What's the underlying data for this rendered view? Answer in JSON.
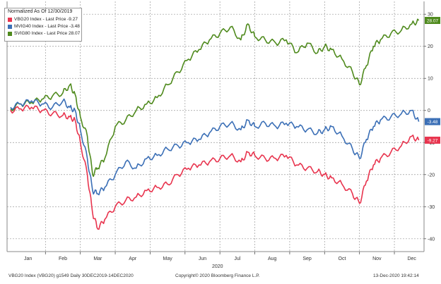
{
  "legend": {
    "title": "Normalized As Of 12/30/2019",
    "items": [
      {
        "label": "VBG20 Index - Last Price  -9.27",
        "color": "#e8344e"
      },
      {
        "label": "MVIG40 Index - Last Price  -3.48",
        "color": "#3b6fb6"
      },
      {
        "label": "SVIG80 Index - Last Price  28.07",
        "color": "#4f8a1d"
      }
    ]
  },
  "footer": {
    "left": "VBG20 Index (VBG20) g1549  Daily 30DEC2019-14DEC2020",
    "center": "Copyright© 2020 Bloomberg Finance L.P.",
    "right": "13-Dec-2020 19:42:14"
  },
  "chart_data": {
    "type": "line",
    "title": "",
    "xlabel": "2020",
    "ylabel": "",
    "ylim": [
      -44,
      34
    ],
    "yticks": [
      30,
      20,
      10,
      0,
      -10,
      -20,
      -30,
      -40
    ],
    "ytick_labels": [
      "30",
      "20",
      "10",
      "0",
      "-10",
      "-20",
      "-30",
      "-40"
    ],
    "month_labels": [
      "Jan",
      "Feb",
      "Mar",
      "Apr",
      "May",
      "Jun",
      "Jul",
      "Aug",
      "Sep",
      "Oct",
      "Nov",
      "Dec"
    ],
    "month_positions": [
      0.5,
      1.5,
      2.5,
      3.5,
      4.5,
      5.5,
      6.5,
      7.5,
      8.5,
      9.5,
      10.5,
      11.5
    ],
    "x_range": [
      -0.1,
      11.85
    ],
    "grid": true,
    "series": [
      {
        "name": "SVIG80 Index",
        "color": "#4f8a1d",
        "last_value": 28.07,
        "last_label": "28.07",
        "x": [
          0,
          0.3,
          0.6,
          0.9,
          1.2,
          1.5,
          1.7,
          1.85,
          2.0,
          2.2,
          2.35,
          2.5,
          2.7,
          3.0,
          3.3,
          3.6,
          3.9,
          4.2,
          4.5,
          4.8,
          5.1,
          5.4,
          5.7,
          6.0,
          6.3,
          6.6,
          6.8,
          7.0,
          7.3,
          7.6,
          7.9,
          8.2,
          8.5,
          8.8,
          9.0,
          9.2,
          9.5,
          9.8,
          10.0,
          10.2,
          10.4,
          10.6,
          10.9,
          11.2,
          11.5,
          11.7
        ],
        "values": [
          0.5,
          2,
          2.5,
          3.5,
          4.5,
          5.5,
          8,
          5,
          -2,
          -8,
          -20,
          -18,
          -15,
          -5,
          -3,
          0,
          2,
          4,
          8,
          12,
          16,
          19,
          22,
          24,
          26,
          22,
          27,
          23,
          22,
          21,
          22,
          18,
          21,
          18,
          20,
          19,
          16,
          12,
          8,
          14,
          20,
          22,
          24,
          25,
          27,
          28.07
        ]
      },
      {
        "name": "MVIG40 Index",
        "color": "#3b6fb6",
        "last_value": -3.48,
        "last_label": "-3.48",
        "x": [
          0,
          0.3,
          0.6,
          0.9,
          1.2,
          1.5,
          1.7,
          1.85,
          2.0,
          2.2,
          2.35,
          2.5,
          2.7,
          3.0,
          3.3,
          3.6,
          3.9,
          4.2,
          4.5,
          4.8,
          5.1,
          5.4,
          5.7,
          6.0,
          6.3,
          6.6,
          6.8,
          7.0,
          7.3,
          7.6,
          7.9,
          8.2,
          8.5,
          8.8,
          9.0,
          9.2,
          9.5,
          9.8,
          10.0,
          10.2,
          10.4,
          10.6,
          10.9,
          11.2,
          11.5,
          11.7
        ],
        "values": [
          1,
          2,
          3,
          2,
          1,
          3,
          1,
          0,
          -6,
          -15,
          -25,
          -26,
          -24,
          -20,
          -16,
          -18,
          -15,
          -14,
          -12,
          -11,
          -10,
          -9,
          -7,
          -5,
          -4,
          -6,
          -3,
          -5,
          -4,
          -5,
          -4,
          -5,
          -6,
          -7,
          -6,
          -5,
          -8,
          -12,
          -15,
          -9,
          -5,
          -3,
          -2,
          -1,
          0,
          -3.48
        ]
      },
      {
        "name": "VBG20 Index",
        "color": "#e8344e",
        "last_value": -9.27,
        "last_label": "-9.27",
        "x": [
          0,
          0.3,
          0.6,
          0.9,
          1.2,
          1.5,
          1.7,
          1.85,
          2.0,
          2.2,
          2.35,
          2.5,
          2.7,
          3.0,
          3.3,
          3.6,
          3.9,
          4.2,
          4.5,
          4.8,
          5.1,
          5.4,
          5.7,
          6.0,
          6.3,
          6.6,
          6.8,
          7.0,
          7.3,
          7.6,
          7.9,
          8.2,
          8.5,
          8.8,
          9.0,
          9.2,
          9.5,
          9.8,
          10.0,
          10.2,
          10.4,
          10.6,
          10.9,
          11.2,
          11.5,
          11.7
        ],
        "values": [
          0,
          0.5,
          1,
          0,
          -1,
          -1.5,
          -2,
          -3,
          -10,
          -20,
          -32,
          -37,
          -34,
          -30,
          -28,
          -27,
          -25,
          -24,
          -23,
          -20,
          -18,
          -17,
          -16,
          -15,
          -14,
          -16,
          -13,
          -14,
          -15,
          -15,
          -14,
          -17,
          -18,
          -19,
          -20,
          -21,
          -23,
          -26,
          -29,
          -22,
          -17,
          -15,
          -13,
          -11,
          -8,
          -9.27
        ]
      }
    ]
  }
}
